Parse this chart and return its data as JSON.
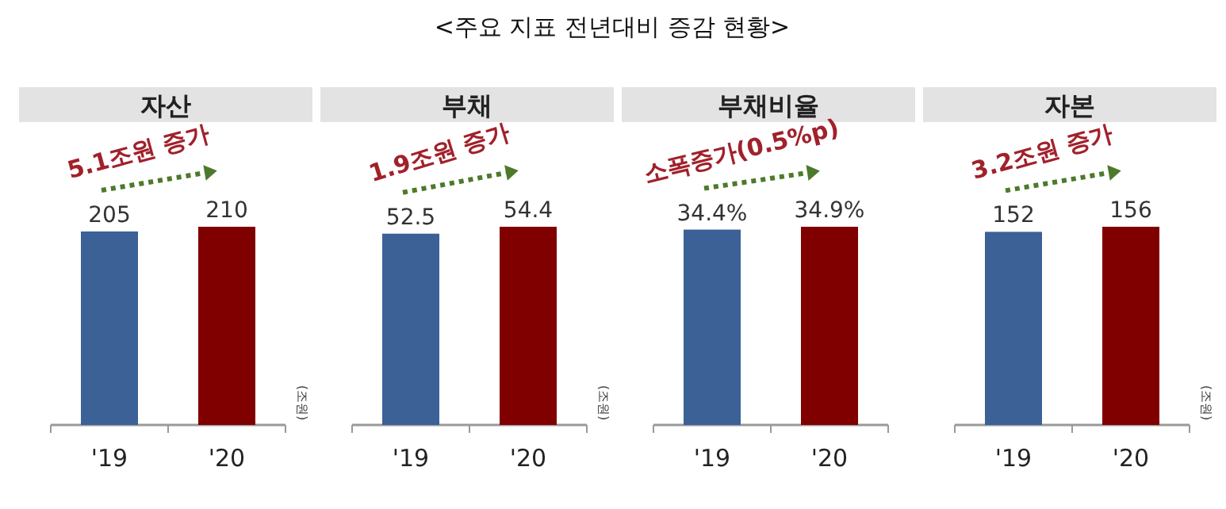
{
  "chart_data": [
    {
      "type": "bar",
      "title": "자산",
      "categories": [
        "'19",
        "'20"
      ],
      "values": [
        205,
        210
      ],
      "colors": [
        "#3b6197",
        "#800000"
      ],
      "data_labels": true,
      "annotations": [
        "<주요 지표 전년대비 증감 현황>",
        "5.1조원 증가",
        "(조원)"
      ]
    },
    {
      "type": "bar",
      "title": "부채",
      "categories": [
        "'19",
        "'20"
      ],
      "values": [
        52.5,
        54.4
      ],
      "colors": [
        "#3b6197",
        "#800000"
      ],
      "data_labels": true,
      "annotations": [
        "1.9조원 증가",
        "(조원)"
      ]
    },
    {
      "type": "bar",
      "title": "부채비율",
      "categories": [
        "'19",
        "'20"
      ],
      "values": [
        34.4,
        34.9
      ],
      "value_labels": [
        "34.4%",
        "34.9%"
      ],
      "colors": [
        "#3b6197",
        "#800000"
      ],
      "annotations": [
        "소폭증가(0.5%p)"
      ]
    },
    {
      "type": "bar",
      "title": "자본",
      "categories": [
        "'19",
        "'20"
      ],
      "values": [
        152,
        156
      ],
      "colors": [
        "#3b6197",
        "#800000"
      ],
      "data_labels": true,
      "annotations": [
        "3.2조원 증가",
        "(조원)"
      ]
    }
  ]
}
